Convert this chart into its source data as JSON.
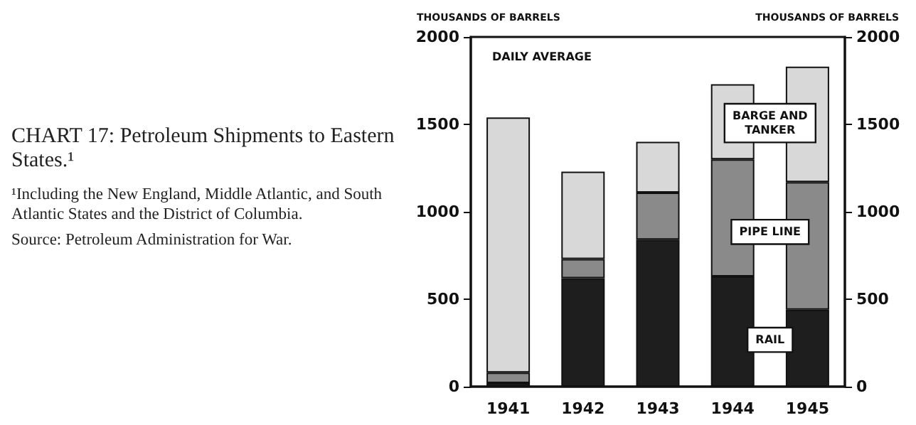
{
  "chart_data": {
    "type": "bar",
    "title": "CHART 17: Petroleum Shipments to Eastern States.¹",
    "subtitle": "DAILY AVERAGE",
    "annotations": [
      "¹Including the New England, Middle Atlantic, and South Atlantic States and the District of Columbia.",
      "Source: Petroleum Administration for War."
    ],
    "ylabel": "THOUSANDS OF BARRELS",
    "y2label": "THOUSANDS OF BARRELS",
    "categories": [
      "1941",
      "1942",
      "1943",
      "1944",
      "1945"
    ],
    "stacked": true,
    "series": [
      {
        "name": "RAIL",
        "color": "#1e1e1e",
        "values": [
          20,
          620,
          840,
          630,
          440
        ]
      },
      {
        "name": "PIPE LINE",
        "color": "#8a8a8a",
        "values": [
          60,
          110,
          270,
          670,
          730
        ]
      },
      {
        "name": "BARGE AND TANKER",
        "color": "#d8d8d8",
        "values": [
          1460,
          500,
          290,
          430,
          660
        ]
      }
    ],
    "ylim": [
      0,
      2000
    ],
    "yticks": [
      0,
      500,
      1000,
      1500,
      2000
    ],
    "y2lim": [
      0,
      2000
    ],
    "y2ticks": [
      0,
      500,
      1000,
      1500,
      2000
    ],
    "grid": false,
    "legend": false
  }
}
